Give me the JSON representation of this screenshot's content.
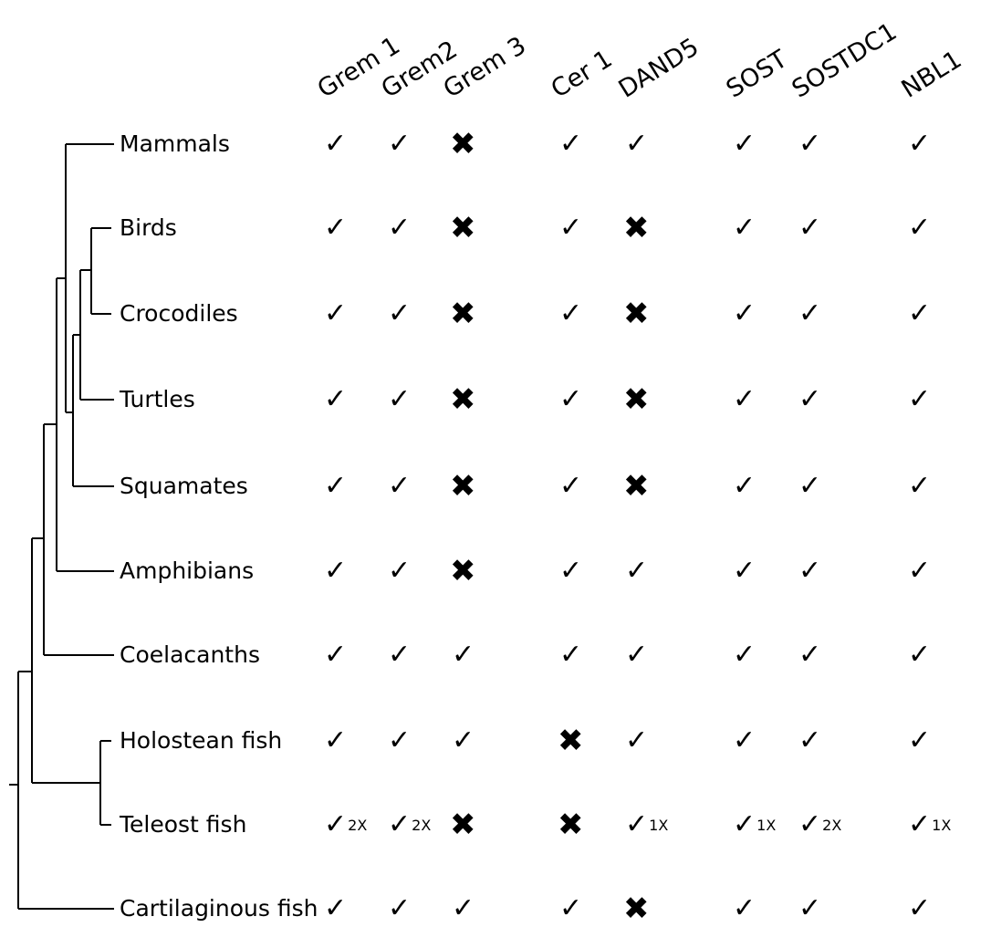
{
  "genes": [
    "Grem 1",
    "Grem2",
    "Grem 3",
    "Cer 1",
    "DAND5",
    "SOST",
    "SOSTDC1",
    "NBL1"
  ],
  "taxa": [
    {
      "name": "Mammals",
      "marks": [
        "check",
        "check",
        "cross",
        "check",
        "check",
        "check",
        "check",
        "check"
      ],
      "notes": [
        "",
        "",
        "",
        "",
        "",
        "",
        "",
        ""
      ]
    },
    {
      "name": "Birds",
      "marks": [
        "check",
        "check",
        "cross",
        "check",
        "cross",
        "check",
        "check",
        "check"
      ],
      "notes": [
        "",
        "",
        "",
        "",
        "",
        "",
        "",
        ""
      ]
    },
    {
      "name": "Crocodiles",
      "marks": [
        "check",
        "check",
        "cross",
        "check",
        "cross",
        "check",
        "check",
        "check"
      ],
      "notes": [
        "",
        "",
        "",
        "",
        "",
        "",
        "",
        ""
      ]
    },
    {
      "name": "Turtles",
      "marks": [
        "check",
        "check",
        "cross",
        "check",
        "cross",
        "check",
        "check",
        "check"
      ],
      "notes": [
        "",
        "",
        "",
        "",
        "",
        "",
        "",
        ""
      ]
    },
    {
      "name": "Squamates",
      "marks": [
        "check",
        "check",
        "cross",
        "check",
        "cross",
        "check",
        "check",
        "check"
      ],
      "notes": [
        "",
        "",
        "",
        "",
        "",
        "",
        "",
        ""
      ]
    },
    {
      "name": "Amphibians",
      "marks": [
        "check",
        "check",
        "cross",
        "check",
        "check",
        "check",
        "check",
        "check"
      ],
      "notes": [
        "",
        "",
        "",
        "",
        "",
        "",
        "",
        ""
      ]
    },
    {
      "name": "Coelacanths",
      "marks": [
        "check",
        "check",
        "check",
        "check",
        "check",
        "check",
        "check",
        "check"
      ],
      "notes": [
        "",
        "",
        "",
        "",
        "",
        "",
        "",
        ""
      ]
    },
    {
      "name": "Holostean fish",
      "marks": [
        "check",
        "check",
        "check",
        "cross",
        "check",
        "check",
        "check",
        "check"
      ],
      "notes": [
        "",
        "",
        "",
        "",
        "",
        "",
        "",
        ""
      ]
    },
    {
      "name": "Teleost fish",
      "marks": [
        "check",
        "check",
        "cross",
        "cross",
        "check",
        "check",
        "check",
        "check"
      ],
      "notes": [
        "2X",
        "2X",
        "",
        "",
        "1X",
        "1X",
        "2X",
        "1X"
      ]
    },
    {
      "name": "Cartilaginous fish",
      "marks": [
        "check",
        "check",
        "check",
        "check",
        "cross",
        "check",
        "check",
        "check"
      ],
      "notes": [
        "",
        "",
        "",
        "",
        "",
        "",
        "",
        ""
      ]
    }
  ],
  "symbols": {
    "check": "✓",
    "cross": "✖"
  },
  "colors": {
    "ink": "#000000",
    "background": "#ffffff"
  }
}
